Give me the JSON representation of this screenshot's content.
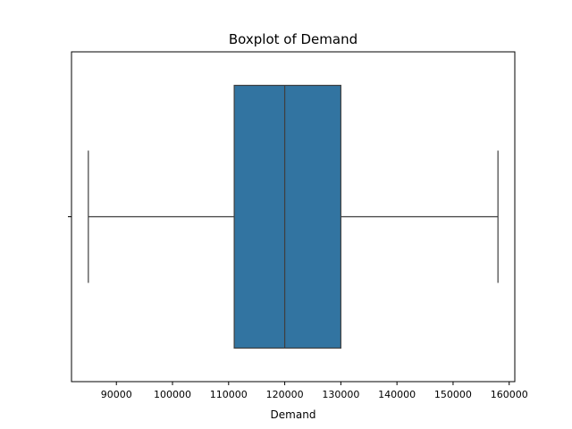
{
  "chart_data": {
    "type": "box",
    "title": "Boxplot of Demand",
    "xlabel": "Demand",
    "ylabel": "",
    "orientation": "horizontal",
    "xlim": [
      82000,
      161000
    ],
    "xticks": [
      90000,
      100000,
      110000,
      120000,
      130000,
      140000,
      150000,
      160000
    ],
    "xtick_labels": [
      "90000",
      "100000",
      "110000",
      "120000",
      "130000",
      "140000",
      "150000",
      "160000"
    ],
    "grid": false,
    "box": {
      "whisker_low": 85000,
      "q1": 111000,
      "median": 120000,
      "q3": 130000,
      "whisker_high": 158000
    },
    "colors": {
      "box_fill": "#3274a1",
      "line": "#3f3f3f",
      "axes": "#000000"
    }
  }
}
